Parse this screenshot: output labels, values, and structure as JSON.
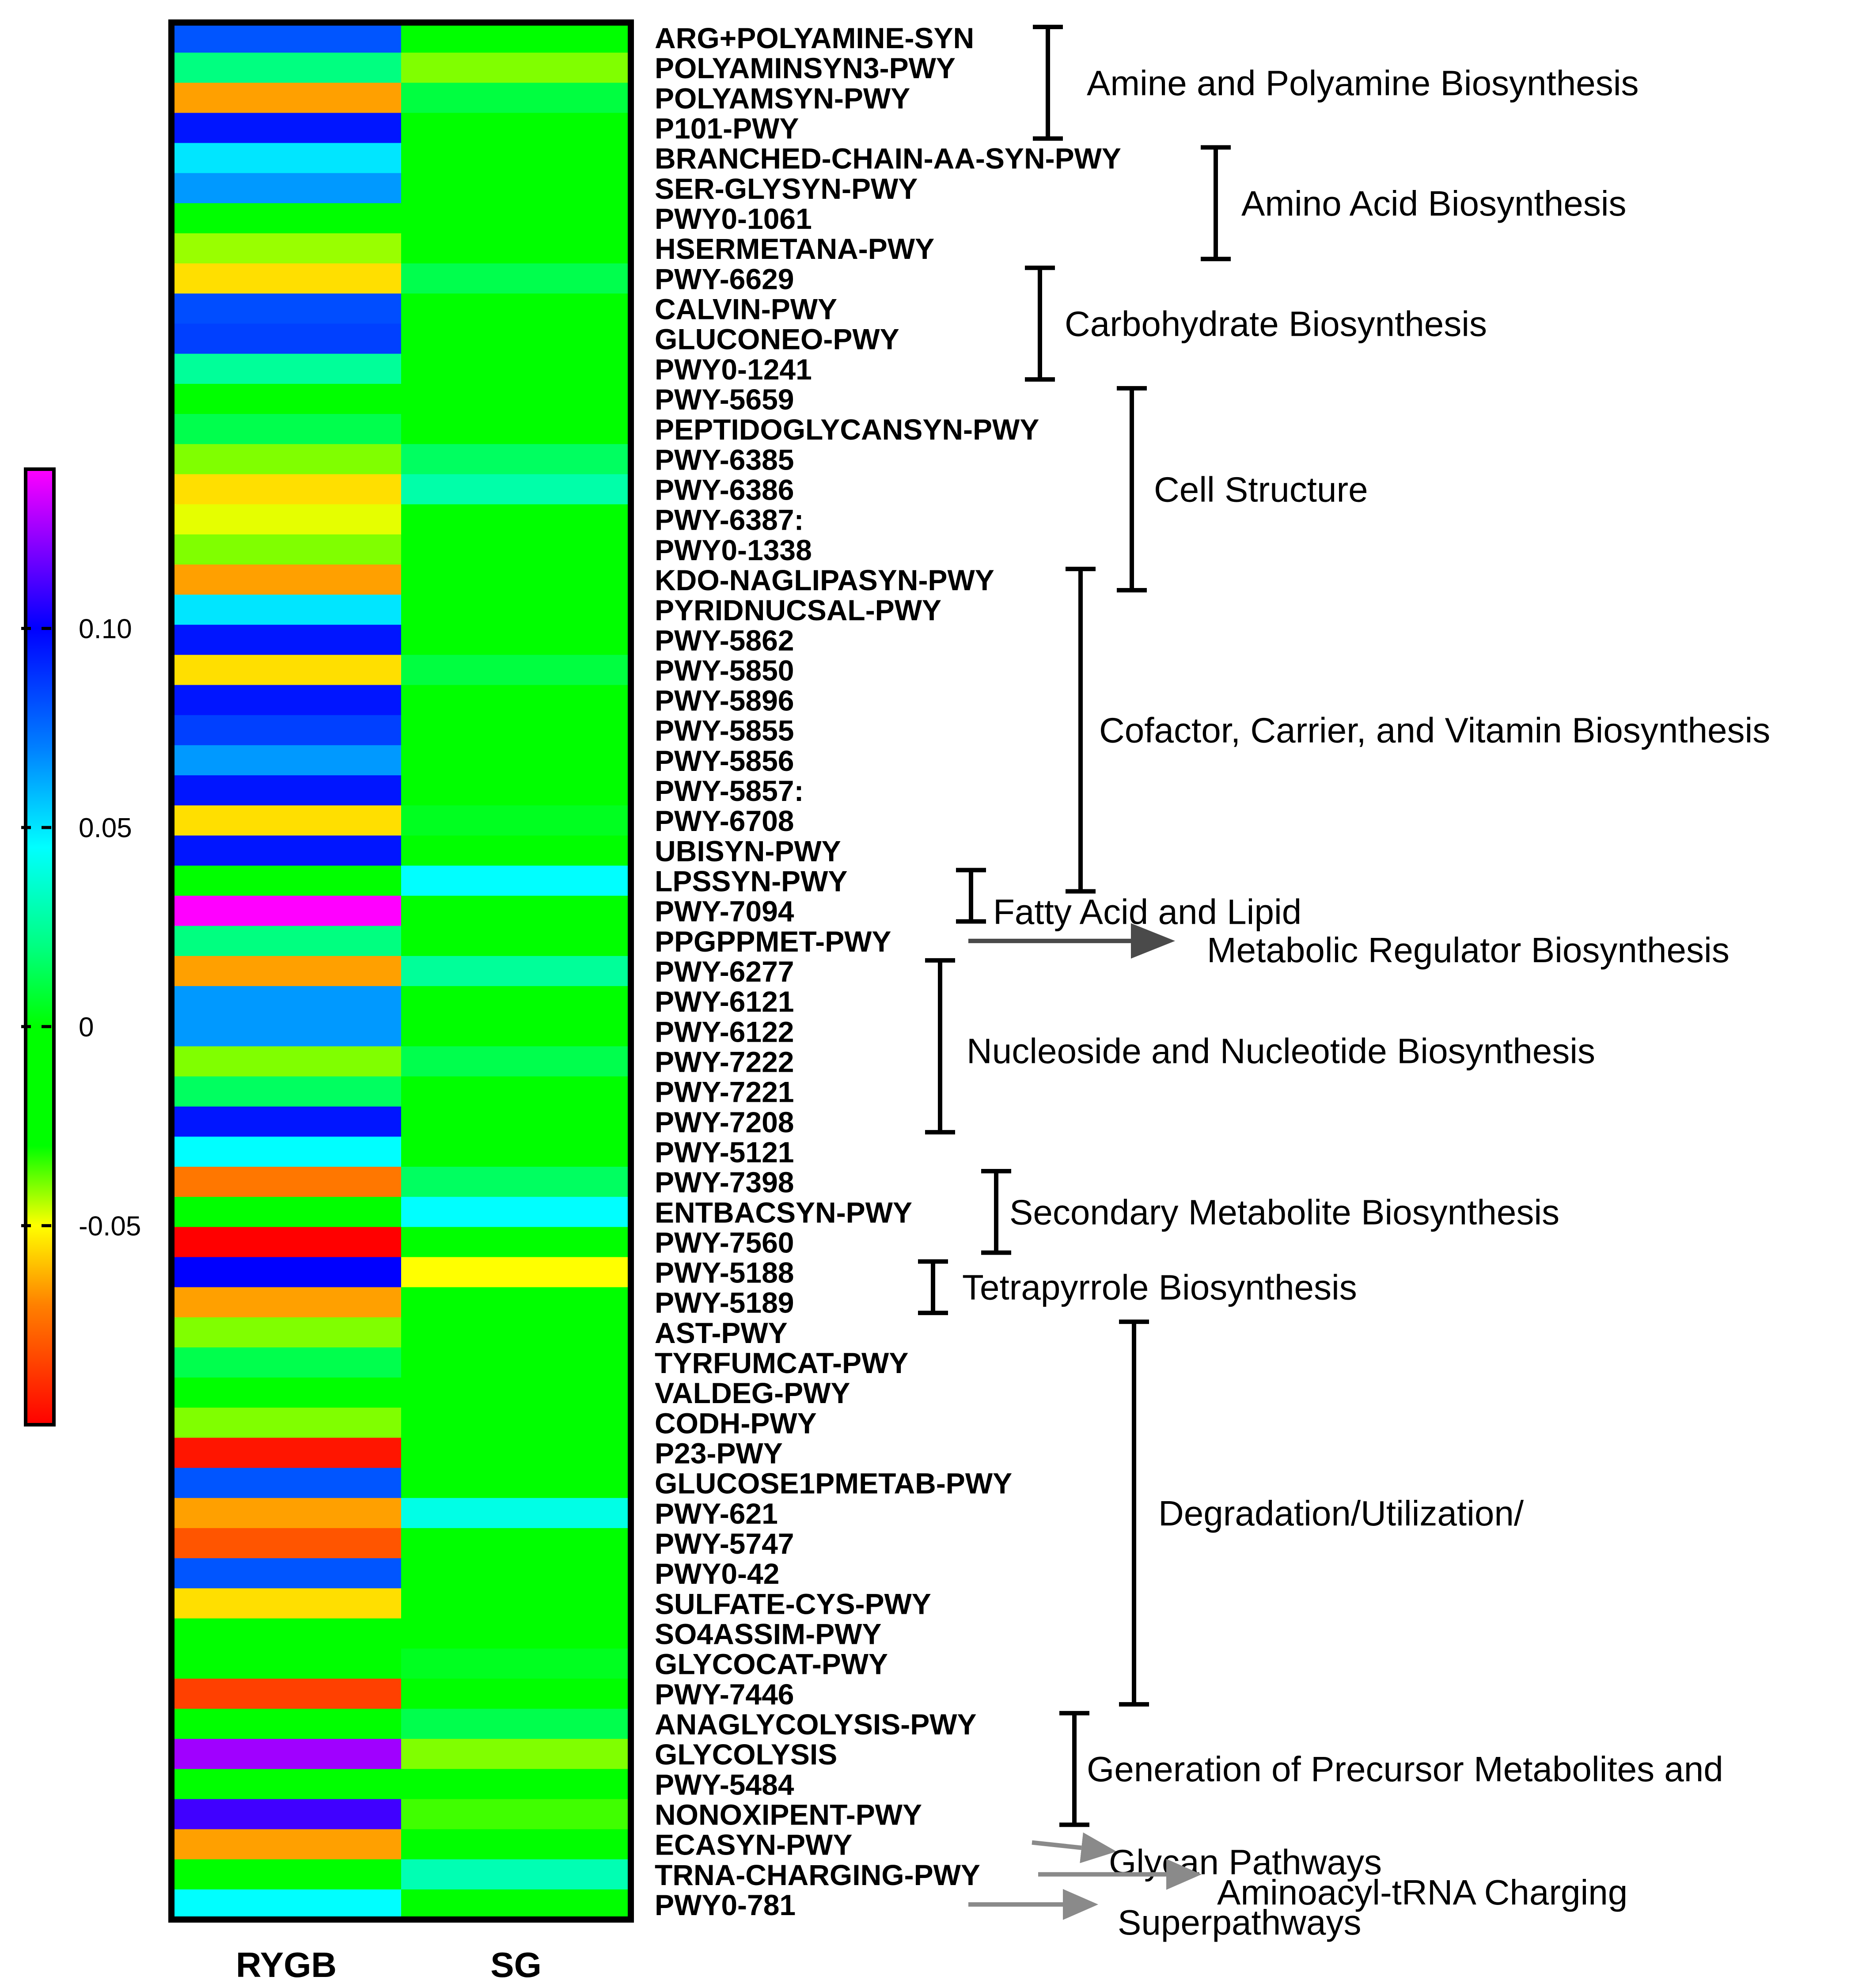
{
  "chart_data": {
    "type": "heatmap",
    "columns": [
      "RYGB",
      "SG"
    ],
    "colorbar": {
      "min": -0.1,
      "max": 0.14,
      "ticks": [
        0.1,
        0.05,
        0,
        -0.05
      ],
      "tick_labels": [
        "0.10",
        "0.05",
        "0",
        "-0.05"
      ],
      "colormap": [
        {
          "v": -0.1,
          "c": "#ff0000"
        },
        {
          "v": -0.07,
          "c": "#ff8000"
        },
        {
          "v": -0.05,
          "c": "#ffff00"
        },
        {
          "v": -0.03,
          "c": "#00ff00"
        },
        {
          "v": 0.0,
          "c": "#00ff00"
        },
        {
          "v": 0.02,
          "c": "#00ff80"
        },
        {
          "v": 0.045,
          "c": "#00ffff"
        },
        {
          "v": 0.07,
          "c": "#0080ff"
        },
        {
          "v": 0.1,
          "c": "#0000ff"
        },
        {
          "v": 0.12,
          "c": "#8000ff"
        },
        {
          "v": 0.14,
          "c": "#ff00ff"
        }
      ]
    },
    "rows": [
      {
        "label": "ARG+POLYAMINE-SYN",
        "RYGB": 0.08,
        "SG": -0.005
      },
      {
        "label": "POLYAMINSYN3-PWY",
        "RYGB": 0.02,
        "SG": -0.04
      },
      {
        "label": "POLYAMSYN-PWY",
        "RYGB": -0.065,
        "SG": 0.01
      },
      {
        "label": "P101-PWY",
        "RYGB": 0.095,
        "SG": -0.005
      },
      {
        "label": "BRANCHED-CHAIN-AA-SYN-PWY",
        "RYGB": 0.05,
        "SG": -0.005
      },
      {
        "label": "SER-GLYSYN-PWY",
        "RYGB": 0.065,
        "SG": -0.005
      },
      {
        "label": "PWY0-1061",
        "RYGB": -0.02,
        "SG": -0.005
      },
      {
        "label": "HSERMETANA-PWY",
        "RYGB": -0.042,
        "SG": -0.005
      },
      {
        "label": "PWY-6629",
        "RYGB": -0.055,
        "SG": 0.012
      },
      {
        "label": "CALVIN-PWY",
        "RYGB": 0.082,
        "SG": -0.005
      },
      {
        "label": "GLUCONEO-PWY",
        "RYGB": 0.085,
        "SG": -0.005
      },
      {
        "label": "PWY0-1241",
        "RYGB": 0.025,
        "SG": -0.005
      },
      {
        "label": "PWY-5659",
        "RYGB": -0.01,
        "SG": -0.005
      },
      {
        "label": "PEPTIDOGLYCANSYN-PWY",
        "RYGB": 0.012,
        "SG": -0.005
      },
      {
        "label": "PWY-6385",
        "RYGB": -0.04,
        "SG": 0.015
      },
      {
        "label": "PWY-6386",
        "RYGB": -0.055,
        "SG": 0.028
      },
      {
        "label": "PWY-6387:",
        "RYGB": -0.048,
        "SG": 0.0
      },
      {
        "label": "PWY0-1338",
        "RYGB": -0.04,
        "SG": -0.005
      },
      {
        "label": "KDO-NAGLIPASYN-PWY",
        "RYGB": -0.065,
        "SG": -0.005
      },
      {
        "label": "PYRIDNUCSAL-PWY",
        "RYGB": 0.05,
        "SG": -0.005
      },
      {
        "label": "PWY-5862",
        "RYGB": 0.095,
        "SG": -0.005
      },
      {
        "label": "PWY-5850",
        "RYGB": -0.055,
        "SG": 0.01
      },
      {
        "label": "PWY-5896",
        "RYGB": 0.095,
        "SG": -0.005
      },
      {
        "label": "PWY-5855",
        "RYGB": 0.085,
        "SG": -0.005
      },
      {
        "label": "PWY-5856",
        "RYGB": 0.065,
        "SG": -0.005
      },
      {
        "label": "PWY-5857:",
        "RYGB": 0.095,
        "SG": -0.005
      },
      {
        "label": "PWY-6708",
        "RYGB": -0.055,
        "SG": 0.005
      },
      {
        "label": "UBISYN-PWY",
        "RYGB": 0.095,
        "SG": -0.005
      },
      {
        "label": "LPSSYN-PWY",
        "RYGB": -0.005,
        "SG": 0.045
      },
      {
        "label": "PWY-7094",
        "RYGB": 0.14,
        "SG": -0.005
      },
      {
        "label": "PPGPPMET-PWY",
        "RYGB": 0.02,
        "SG": -0.005
      },
      {
        "label": "PWY-6277",
        "RYGB": -0.065,
        "SG": 0.025
      },
      {
        "label": "PWY-6121",
        "RYGB": 0.065,
        "SG": -0.005
      },
      {
        "label": "PWY-6122",
        "RYGB": 0.065,
        "SG": -0.005
      },
      {
        "label": "PWY-7222",
        "RYGB": -0.04,
        "SG": 0.012
      },
      {
        "label": "PWY-7221",
        "RYGB": 0.015,
        "SG": -0.005
      },
      {
        "label": "PWY-7208",
        "RYGB": 0.095,
        "SG": -0.005
      },
      {
        "label": "PWY-5121",
        "RYGB": 0.045,
        "SG": -0.005
      },
      {
        "label": "PWY-7398",
        "RYGB": -0.072,
        "SG": 0.015
      },
      {
        "label": "ENTBACSYN-PWY",
        "RYGB": -0.01,
        "SG": 0.045
      },
      {
        "label": "PWY-7560",
        "RYGB": -0.1,
        "SG": -0.005
      },
      {
        "label": "PWY-5188",
        "RYGB": 0.1,
        "SG": -0.05
      },
      {
        "label": "PWY-5189",
        "RYGB": -0.065,
        "SG": -0.005
      },
      {
        "label": "AST-PWY",
        "RYGB": -0.04,
        "SG": -0.005
      },
      {
        "label": "TYRFUMCAT-PWY",
        "RYGB": 0.012,
        "SG": -0.005
      },
      {
        "label": "VALDEG-PWY",
        "RYGB": -0.005,
        "SG": -0.005
      },
      {
        "label": "CODH-PWY",
        "RYGB": -0.04,
        "SG": -0.005
      },
      {
        "label": "P23-PWY",
        "RYGB": -0.095,
        "SG": -0.03
      },
      {
        "label": "GLUCOSE1PMETAB-PWY",
        "RYGB": 0.08,
        "SG": -0.03
      },
      {
        "label": "PWY-621",
        "RYGB": -0.065,
        "SG": 0.04
      },
      {
        "label": "PWY-5747",
        "RYGB": -0.08,
        "SG": -0.005
      },
      {
        "label": "PWY0-42",
        "RYGB": 0.08,
        "SG": -0.005
      },
      {
        "label": "SULFATE-CYS-PWY",
        "RYGB": -0.055,
        "SG": -0.005
      },
      {
        "label": "SO4ASSIM-PWY",
        "RYGB": -0.005,
        "SG": -0.005
      },
      {
        "label": "GLYCOCAT-PWY",
        "RYGB": -0.005,
        "SG": 0.005
      },
      {
        "label": "PWY-7446",
        "RYGB": -0.085,
        "SG": -0.005
      },
      {
        "label": "ANAGLYCOLYSIS-PWY",
        "RYGB": -0.01,
        "SG": 0.012
      },
      {
        "label": "GLYCOLYSIS",
        "RYGB": 0.125,
        "SG": -0.04
      },
      {
        "label": "PWY-5484",
        "RYGB": -0.01,
        "SG": -0.005
      },
      {
        "label": "NONOXIPENT-PWY",
        "RYGB": 0.11,
        "SG": -0.035
      },
      {
        "label": "ECASYN-PWY",
        "RYGB": -0.065,
        "SG": -0.005
      },
      {
        "label": "TRNA-CHARGING-PWY",
        "RYGB": -0.005,
        "SG": 0.03
      },
      {
        "label": "PWY0-781",
        "RYGB": 0.045,
        "SG": -0.005
      }
    ],
    "groups": [
      {
        "label": "Amine and Polyamine Biosynthesis",
        "start": 0,
        "end": 3,
        "kind": "bracket"
      },
      {
        "label": "Amino Acid Biosynthesis",
        "start": 4,
        "end": 7,
        "kind": "bracket"
      },
      {
        "label": "Carbohydrate Biosynthesis",
        "start": 8,
        "end": 11,
        "kind": "bracket"
      },
      {
        "label": "Cell Structure",
        "start": 12,
        "end": 18,
        "kind": "bracket"
      },
      {
        "label": "Cofactor, Carrier, and Vitamin Biosynthesis",
        "start": 18,
        "end": 28,
        "kind": "bracket"
      },
      {
        "label": "Fatty Acid and Lipid",
        "start": 28,
        "end": 29,
        "kind": "bracket"
      },
      {
        "label": "Metabolic Regulator Biosynthesis",
        "start": 30,
        "end": 30,
        "kind": "arrow"
      },
      {
        "label": "Nucleoside and Nucleotide Biosynthesis",
        "start": 31,
        "end": 36,
        "kind": "bracket"
      },
      {
        "label": "Secondary Metabolite Biosynthesis",
        "start": 38,
        "end": 40,
        "kind": "bracket"
      },
      {
        "label": "Tetrapyrrole Biosynthesis",
        "start": 41,
        "end": 42,
        "kind": "bracket"
      },
      {
        "label": "Degradation/Utilization/",
        "start": 43,
        "end": 55,
        "kind": "bracket"
      },
      {
        "label": "Generation of Precursor Metabolites and",
        "start": 56,
        "end": 59,
        "kind": "bracket"
      },
      {
        "label": "Glycan Pathways",
        "start": 60,
        "end": 60,
        "kind": "arrow"
      },
      {
        "label": "Aminoacyl-tRNA Charging",
        "start": 61,
        "end": 61,
        "kind": "arrow"
      },
      {
        "label": "Superpathways",
        "start": 62,
        "end": 62,
        "kind": "arrow"
      }
    ]
  }
}
